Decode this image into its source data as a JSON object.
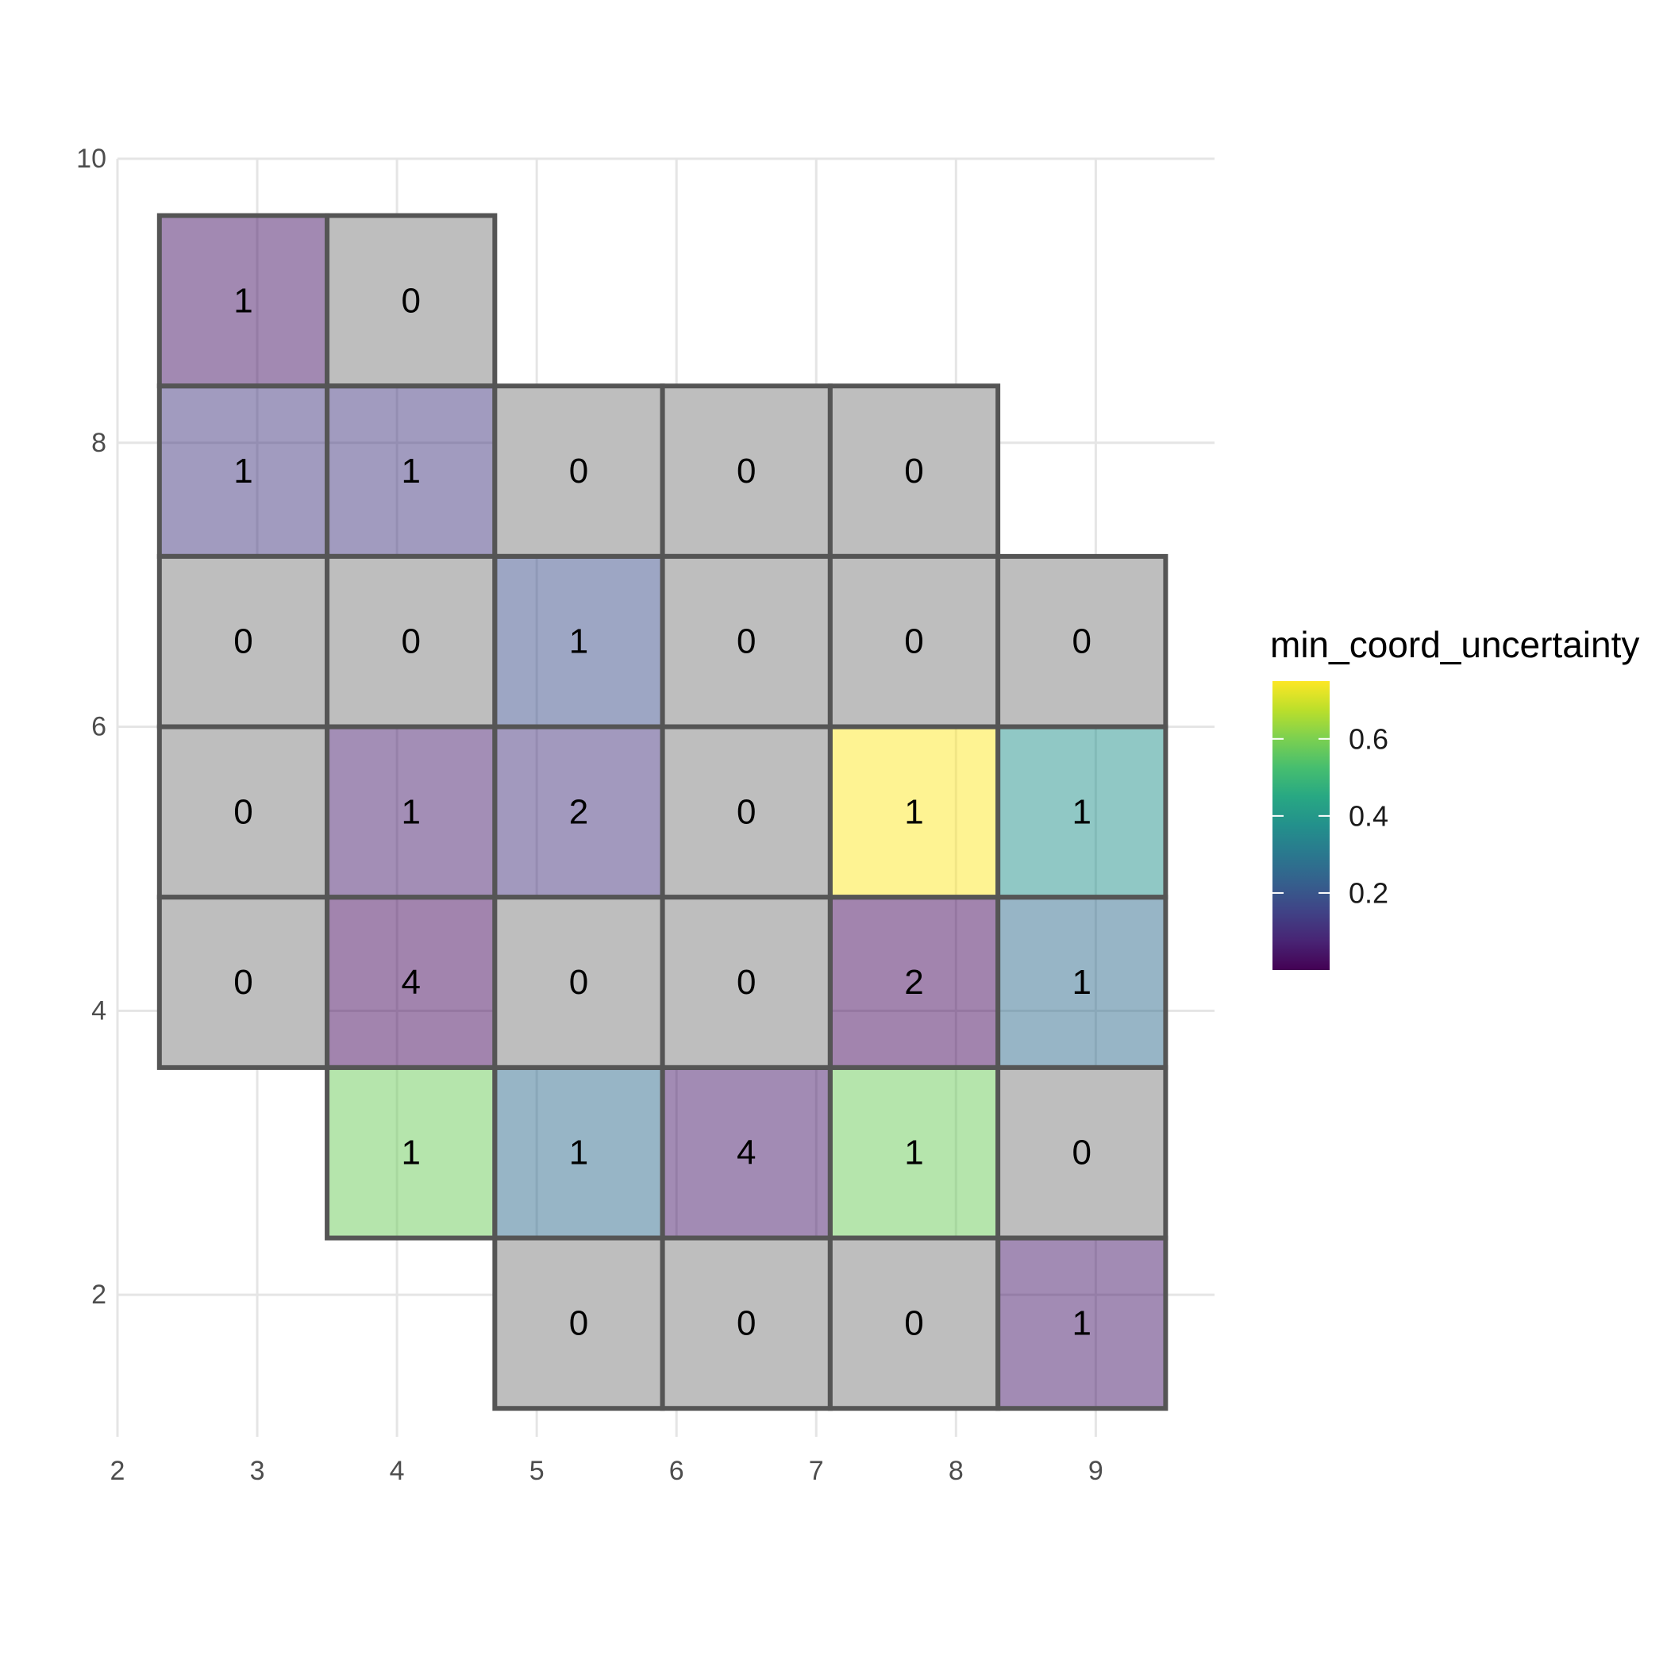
{
  "chart_data": {
    "type": "heatmap",
    "title": "",
    "xlabel": "",
    "ylabel": "",
    "xlim": [
      2,
      9.85
    ],
    "ylim": [
      1.0,
      10
    ],
    "x_ticks": [
      2,
      3,
      4,
      5,
      6,
      7,
      8,
      9
    ],
    "y_ticks": [
      2,
      4,
      6,
      8,
      10
    ],
    "grid": true,
    "na_color": "#bebebe",
    "cell_border_color": "#555555",
    "legend": {
      "title": "min_coord_uncertainty",
      "placement": "right",
      "colormap": "viridis",
      "range": [
        0.0,
        0.75
      ],
      "ticks": [
        0.2,
        0.4,
        0.6
      ]
    },
    "cells": [
      {
        "x": 2.9,
        "y": 9.0,
        "count": 1,
        "min_coord_uncertainty": 0.04
      },
      {
        "x": 4.1,
        "y": 9.0,
        "count": 0,
        "min_coord_uncertainty": null
      },
      {
        "x": 2.9,
        "y": 7.8,
        "count": 1,
        "min_coord_uncertainty": 0.12
      },
      {
        "x": 4.1,
        "y": 7.8,
        "count": 1,
        "min_coord_uncertainty": 0.12
      },
      {
        "x": 5.3,
        "y": 7.8,
        "count": 0,
        "min_coord_uncertainty": null
      },
      {
        "x": 6.5,
        "y": 7.8,
        "count": 0,
        "min_coord_uncertainty": null
      },
      {
        "x": 7.7,
        "y": 7.8,
        "count": 0,
        "min_coord_uncertainty": null
      },
      {
        "x": 2.9,
        "y": 6.6,
        "count": 0,
        "min_coord_uncertainty": null
      },
      {
        "x": 4.1,
        "y": 6.6,
        "count": 0,
        "min_coord_uncertainty": null
      },
      {
        "x": 5.3,
        "y": 6.6,
        "count": 1,
        "min_coord_uncertainty": 0.18
      },
      {
        "x": 6.5,
        "y": 6.6,
        "count": 0,
        "min_coord_uncertainty": null
      },
      {
        "x": 7.7,
        "y": 6.6,
        "count": 0,
        "min_coord_uncertainty": null
      },
      {
        "x": 8.9,
        "y": 6.6,
        "count": 0,
        "min_coord_uncertainty": null
      },
      {
        "x": 2.9,
        "y": 5.4,
        "count": 0,
        "min_coord_uncertainty": null
      },
      {
        "x": 4.1,
        "y": 5.4,
        "count": 1,
        "min_coord_uncertainty": 0.06
      },
      {
        "x": 5.3,
        "y": 5.4,
        "count": 2,
        "min_coord_uncertainty": 0.11
      },
      {
        "x": 6.5,
        "y": 5.4,
        "count": 0,
        "min_coord_uncertainty": null
      },
      {
        "x": 7.7,
        "y": 5.4,
        "count": 1,
        "min_coord_uncertainty": 0.75
      },
      {
        "x": 8.9,
        "y": 5.4,
        "count": 1,
        "min_coord_uncertainty": 0.38
      },
      {
        "x": 2.9,
        "y": 4.2,
        "count": 0,
        "min_coord_uncertainty": null
      },
      {
        "x": 4.1,
        "y": 4.2,
        "count": 4,
        "min_coord_uncertainty": 0.02
      },
      {
        "x": 5.3,
        "y": 4.2,
        "count": 0,
        "min_coord_uncertainty": null
      },
      {
        "x": 6.5,
        "y": 4.2,
        "count": 0,
        "min_coord_uncertainty": null
      },
      {
        "x": 7.7,
        "y": 4.2,
        "count": 2,
        "min_coord_uncertainty": 0.02
      },
      {
        "x": 8.9,
        "y": 4.2,
        "count": 1,
        "min_coord_uncertainty": 0.26
      },
      {
        "x": 4.1,
        "y": 3.0,
        "count": 1,
        "min_coord_uncertainty": 0.58
      },
      {
        "x": 5.3,
        "y": 3.0,
        "count": 1,
        "min_coord_uncertainty": 0.26
      },
      {
        "x": 6.5,
        "y": 3.0,
        "count": 4,
        "min_coord_uncertainty": 0.05
      },
      {
        "x": 7.7,
        "y": 3.0,
        "count": 1,
        "min_coord_uncertainty": 0.58
      },
      {
        "x": 8.9,
        "y": 3.0,
        "count": 0,
        "min_coord_uncertainty": null
      },
      {
        "x": 5.3,
        "y": 1.8,
        "count": 0,
        "min_coord_uncertainty": null
      },
      {
        "x": 6.5,
        "y": 1.8,
        "count": 0,
        "min_coord_uncertainty": null
      },
      {
        "x": 7.7,
        "y": 1.8,
        "count": 0,
        "min_coord_uncertainty": null
      },
      {
        "x": 8.9,
        "y": 1.8,
        "count": 1,
        "min_coord_uncertainty": 0.05
      }
    ]
  }
}
